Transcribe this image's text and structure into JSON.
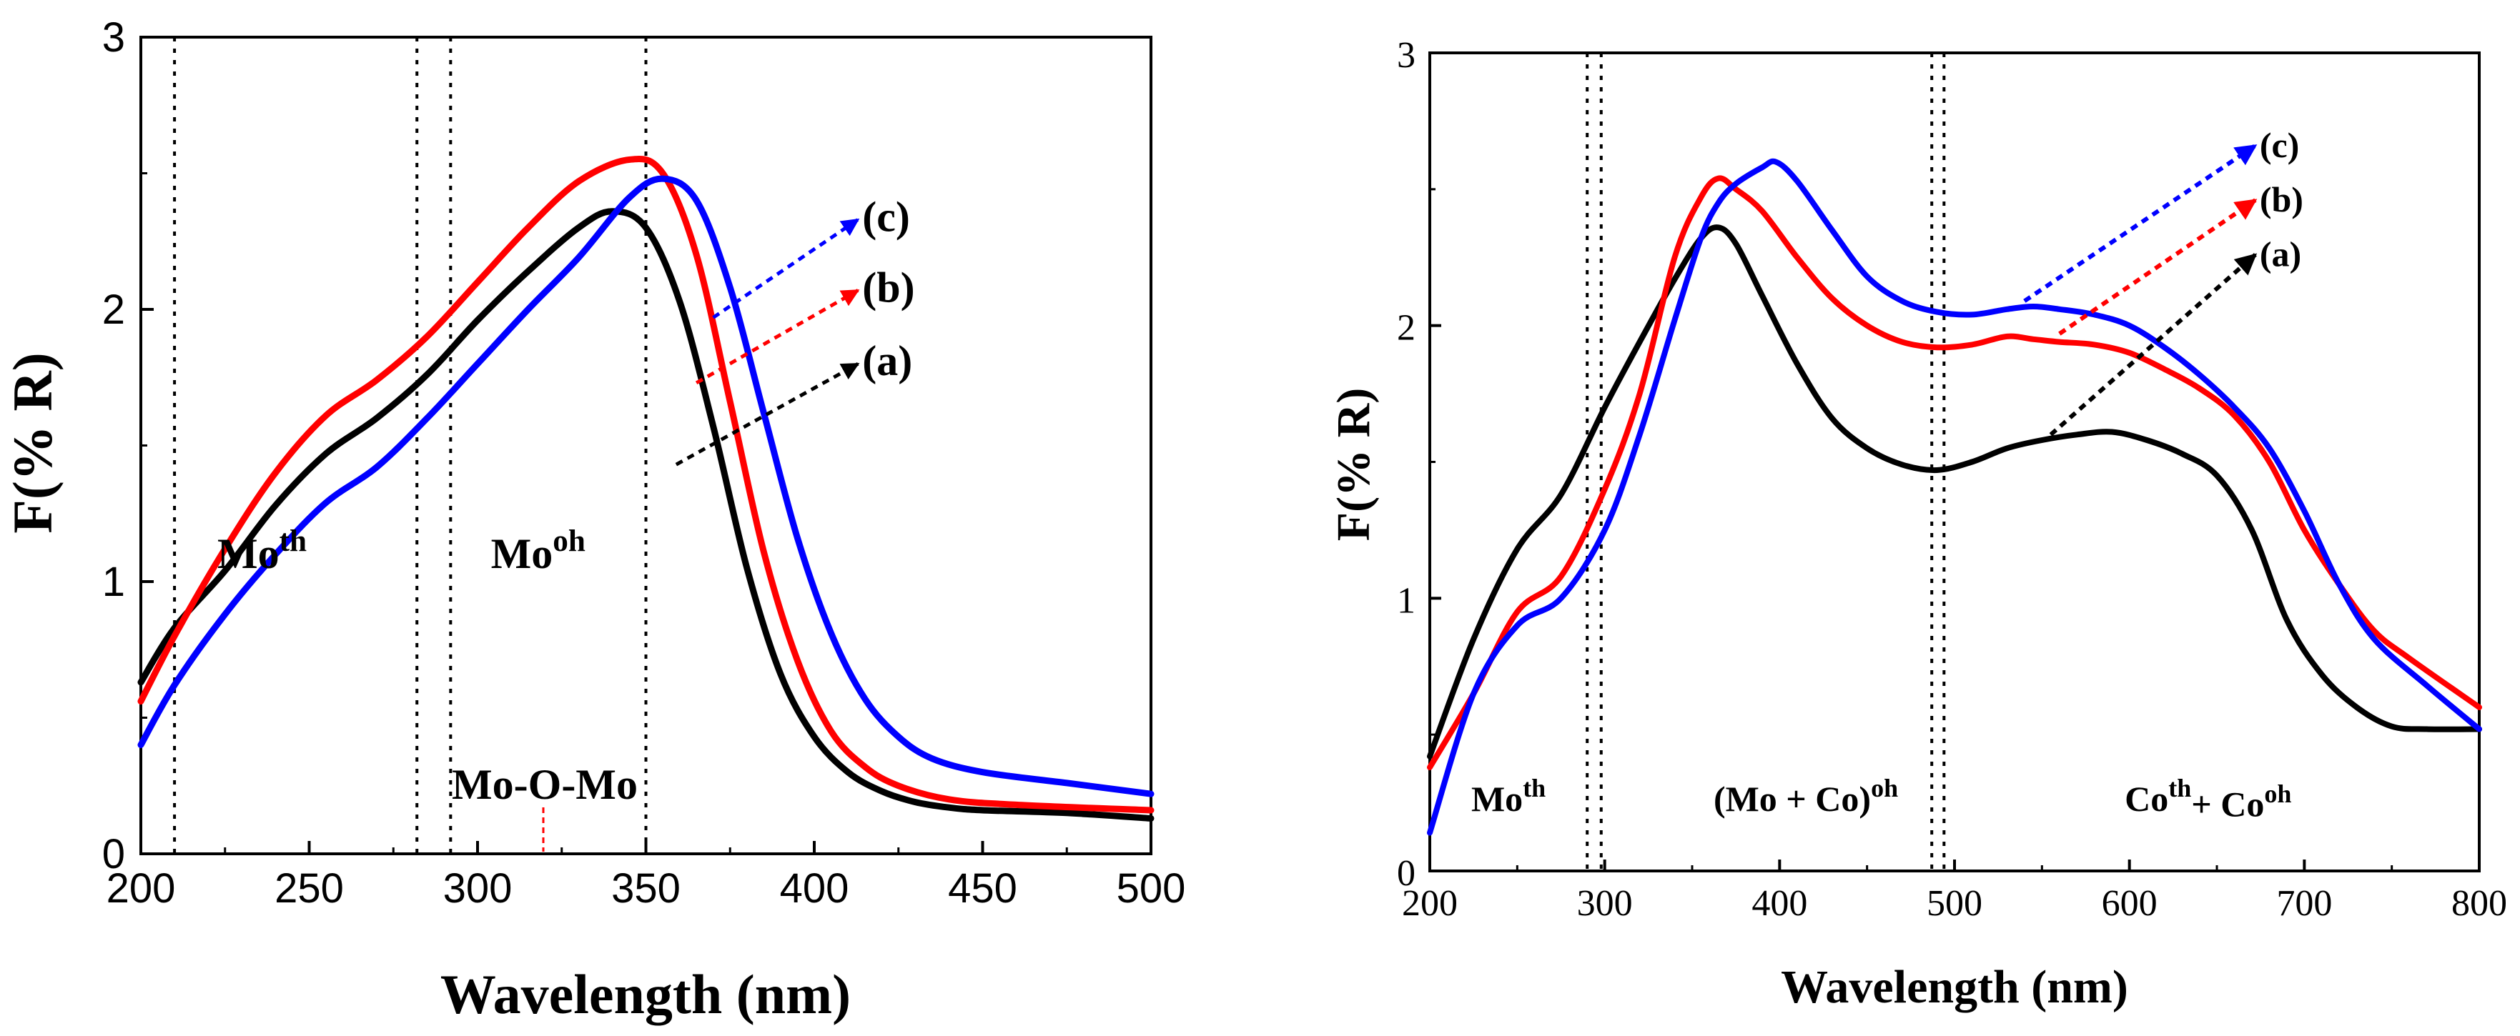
{
  "chart_data": [
    {
      "type": "line",
      "title": "",
      "xlabel": "Wavelength (nm)",
      "ylabel": "F(% R)",
      "xlim": [
        200,
        500
      ],
      "ylim": [
        0,
        3
      ],
      "xticks": [
        200,
        250,
        300,
        350,
        400,
        450,
        500
      ],
      "yticks": [
        0,
        1,
        2,
        3
      ],
      "xtick_labels": [
        "200",
        "250",
        "300",
        "350",
        "400",
        "450",
        "500"
      ],
      "ytick_labels": [
        "0",
        "1",
        "2",
        "3"
      ],
      "grid": false,
      "reference_lines_x": [
        210,
        282,
        292,
        350
      ],
      "regions": [
        {
          "base": "Mo",
          "sup": "th",
          "x": 236,
          "y": 1.05
        },
        {
          "base": "Mo",
          "sup": "oh",
          "x": 318,
          "y": 1.05
        }
      ],
      "annotation": {
        "text": "Mo-O-Mo",
        "x": 318,
        "y": 0.24,
        "pointer_to": 0.0
      },
      "series": [
        {
          "name": "(a)",
          "color": "#000000",
          "x": [
            200,
            210,
            225,
            240,
            255,
            270,
            285,
            300,
            315,
            330,
            340,
            350,
            360,
            370,
            380,
            390,
            400,
            410,
            420,
            430,
            440,
            450,
            475,
            500
          ],
          "y": [
            0.63,
            0.83,
            1.04,
            1.28,
            1.47,
            1.6,
            1.76,
            1.96,
            2.14,
            2.3,
            2.36,
            2.3,
            2.03,
            1.57,
            1.05,
            0.66,
            0.43,
            0.3,
            0.23,
            0.19,
            0.17,
            0.16,
            0.15,
            0.13
          ]
        },
        {
          "name": "(b)",
          "color": "#ff0000",
          "x": [
            200,
            210,
            225,
            240,
            255,
            270,
            285,
            300,
            315,
            330,
            345,
            355,
            365,
            375,
            385,
            395,
            405,
            415,
            425,
            440,
            460,
            500
          ],
          "y": [
            0.56,
            0.8,
            1.12,
            1.4,
            1.61,
            1.74,
            1.9,
            2.1,
            2.3,
            2.47,
            2.55,
            2.5,
            2.2,
            1.66,
            1.11,
            0.71,
            0.45,
            0.32,
            0.25,
            0.2,
            0.18,
            0.16
          ]
        },
        {
          "name": "(c)",
          "color": "#0000ff",
          "x": [
            200,
            210,
            225,
            240,
            255,
            270,
            285,
            300,
            315,
            330,
            345,
            355,
            365,
            375,
            385,
            395,
            405,
            415,
            425,
            435,
            450,
            475,
            500
          ],
          "y": [
            0.4,
            0.62,
            0.88,
            1.1,
            1.29,
            1.42,
            1.6,
            1.8,
            2.0,
            2.19,
            2.41,
            2.48,
            2.4,
            2.08,
            1.62,
            1.16,
            0.81,
            0.57,
            0.43,
            0.35,
            0.3,
            0.26,
            0.22
          ]
        }
      ],
      "labels": [
        {
          "text": "(c)",
          "color": "#0000ff",
          "from": [
            370,
            1.97
          ],
          "to": [
            413,
            2.33
          ]
        },
        {
          "text": "(b)",
          "color": "#ff0000",
          "from": [
            365,
            1.73
          ],
          "to": [
            413,
            2.07
          ]
        },
        {
          "text": "(a)",
          "color": "#000000",
          "from": [
            359,
            1.43
          ],
          "to": [
            413,
            1.8
          ]
        }
      ]
    },
    {
      "type": "line",
      "title": "",
      "xlabel": "Wavelength (nm)",
      "ylabel": "F(% R)",
      "xlim": [
        200,
        800
      ],
      "ylim": [
        0,
        3
      ],
      "xticks": [
        200,
        300,
        400,
        500,
        600,
        700,
        800
      ],
      "yticks": [
        0,
        1,
        2,
        3
      ],
      "xtick_labels": [
        "200",
        "300",
        "400",
        "500",
        "600",
        "700",
        "800"
      ],
      "ytick_labels": [
        "0",
        "1",
        "2",
        "3"
      ],
      "grid": false,
      "reference_lines_x": [
        290,
        298,
        487,
        494
      ],
      "regions": [
        {
          "base": "Mo",
          "sup": "th",
          "x": 245,
          "y": 0.22,
          "parts": [
            "Mo",
            "th"
          ]
        },
        {
          "text": "(Mo + Co)oh",
          "base": "(Mo + Co)",
          "sup": "oh",
          "x": 415,
          "y": 0.22
        },
        {
          "text": "Coth+ Cooh",
          "base": "Co",
          "sup": "th",
          "base2": "+ Co",
          "sup2": "oh",
          "x": 645,
          "y": 0.22
        }
      ],
      "series": [
        {
          "name": "(a)",
          "color": "#000000",
          "x": [
            200,
            225,
            250,
            275,
            300,
            320,
            340,
            355,
            365,
            375,
            390,
            410,
            430,
            450,
            470,
            490,
            510,
            530,
            550,
            570,
            590,
            610,
            630,
            650,
            670,
            690,
            710,
            730,
            750,
            770,
            800
          ],
          "y": [
            0.42,
            0.85,
            1.18,
            1.38,
            1.7,
            1.94,
            2.17,
            2.32,
            2.36,
            2.3,
            2.11,
            1.86,
            1.66,
            1.55,
            1.49,
            1.47,
            1.5,
            1.55,
            1.58,
            1.6,
            1.61,
            1.58,
            1.53,
            1.45,
            1.25,
            0.92,
            0.72,
            0.6,
            0.53,
            0.52,
            0.52
          ]
        },
        {
          "name": "(b)",
          "color": "#ff0000",
          "x": [
            200,
            225,
            250,
            275,
            300,
            320,
            340,
            355,
            365,
            375,
            390,
            410,
            430,
            450,
            470,
            490,
            510,
            530,
            545,
            560,
            580,
            600,
            620,
            640,
            660,
            680,
            700,
            720,
            740,
            760,
            800
          ],
          "y": [
            0.38,
            0.65,
            0.95,
            1.08,
            1.4,
            1.75,
            2.25,
            2.47,
            2.54,
            2.5,
            2.42,
            2.25,
            2.1,
            2.0,
            1.94,
            1.92,
            1.93,
            1.96,
            1.95,
            1.94,
            1.93,
            1.9,
            1.84,
            1.77,
            1.67,
            1.5,
            1.25,
            1.05,
            0.88,
            0.78,
            0.6
          ]
        },
        {
          "name": "(c)",
          "color": "#0000ff",
          "x": [
            200,
            225,
            250,
            275,
            300,
            320,
            340,
            355,
            365,
            375,
            390,
            398,
            410,
            430,
            450,
            470,
            490,
            510,
            530,
            545,
            560,
            580,
            600,
            620,
            640,
            660,
            680,
            700,
            720,
            740,
            770,
            800
          ],
          "y": [
            0.14,
            0.65,
            0.9,
            1.0,
            1.25,
            1.6,
            2.02,
            2.32,
            2.45,
            2.52,
            2.58,
            2.6,
            2.53,
            2.35,
            2.18,
            2.09,
            2.05,
            2.04,
            2.06,
            2.07,
            2.06,
            2.04,
            2.0,
            1.92,
            1.82,
            1.7,
            1.55,
            1.32,
            1.05,
            0.85,
            0.68,
            0.52
          ]
        }
      ],
      "labels": [
        {
          "text": "(c)",
          "color": "#0000ff",
          "from": [
            540,
            2.09
          ],
          "to": [
            672,
            2.66
          ]
        },
        {
          "text": "(b)",
          "color": "#ff0000",
          "from": [
            560,
            1.97
          ],
          "to": [
            672,
            2.46
          ]
        },
        {
          "text": "(a)",
          "color": "#000000",
          "from": [
            555,
            1.6
          ],
          "to": [
            672,
            2.26
          ]
        }
      ]
    }
  ]
}
